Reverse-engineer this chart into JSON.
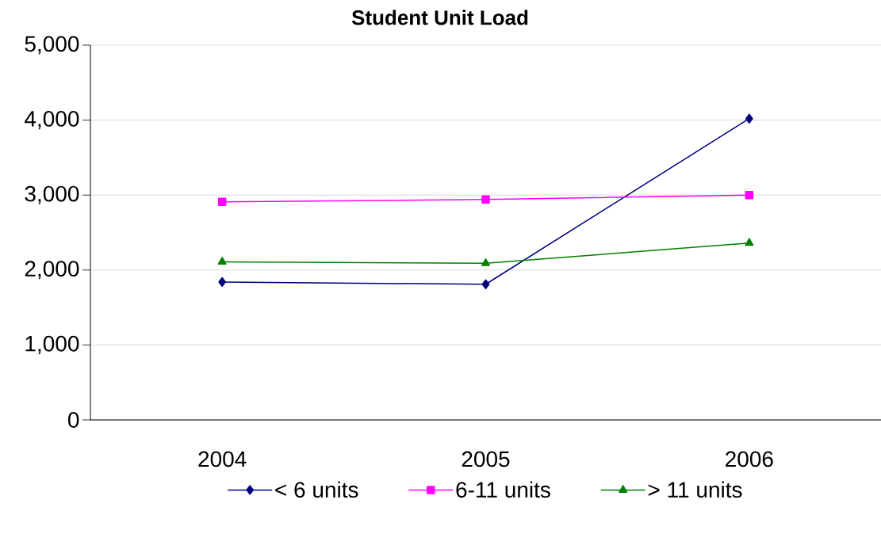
{
  "chart_data": {
    "type": "line",
    "title": "Student Unit Load",
    "categories": [
      "2004",
      "2005",
      "2006"
    ],
    "series": [
      {
        "name": "< 6 units",
        "color": "#000080",
        "marker": "diamond",
        "values": [
          1840,
          1810,
          4020
        ]
      },
      {
        "name": "6-11 units",
        "color": "#ff00ff",
        "marker": "square",
        "values": [
          2910,
          2940,
          3000
        ]
      },
      {
        "name": "> 11 units",
        "color": "#008000",
        "marker": "triangle",
        "values": [
          2110,
          2090,
          2360
        ]
      }
    ],
    "ylim": [
      0,
      5000
    ],
    "yticks": [
      {
        "value": 0,
        "label": "0"
      },
      {
        "value": 1000,
        "label": "1,000"
      },
      {
        "value": 2000,
        "label": "2,000"
      },
      {
        "value": 3000,
        "label": "3,000"
      },
      {
        "value": 4000,
        "label": "4,000"
      },
      {
        "value": 5000,
        "label": "5,000"
      }
    ],
    "grid": "y",
    "legend": "bottom",
    "line_style": "solid"
  }
}
